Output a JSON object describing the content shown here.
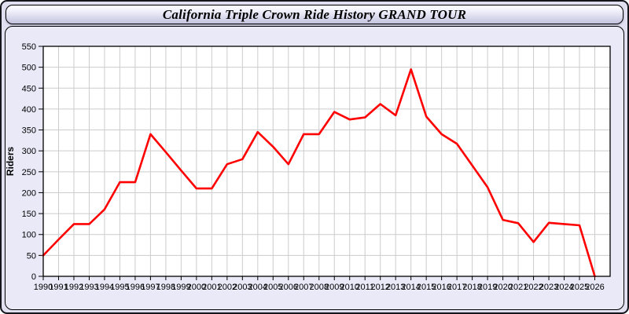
{
  "title": "California Triple Crown Ride History GRAND TOUR",
  "chart_data": {
    "type": "line",
    "title": "California Triple Crown Ride History GRAND TOUR",
    "xlabel": "",
    "ylabel": "Riders",
    "ylim": [
      0,
      550
    ],
    "ytick_step": 50,
    "grid": true,
    "legend": "none",
    "line_color": "#ff0000",
    "grid_color": "#cccccc",
    "plot_bg": "#ffffff",
    "x": [
      1990,
      1991,
      1992,
      1993,
      1994,
      1995,
      1996,
      1997,
      1998,
      1999,
      2000,
      2001,
      2002,
      2003,
      2004,
      2005,
      2006,
      2007,
      2008,
      2009,
      2010,
      2011,
      2012,
      2013,
      2014,
      2015,
      2016,
      2017,
      2018,
      2019,
      2020,
      2021,
      2022,
      2023,
      2024,
      2025,
      2026
    ],
    "series": [
      {
        "name": "Riders",
        "values": [
          50,
          88,
          125,
          125,
          160,
          225,
          225,
          340,
          297,
          253,
          210,
          210,
          268,
          280,
          345,
          310,
          268,
          340,
          340,
          393,
          375,
          380,
          412,
          385,
          495,
          382,
          340,
          317,
          265,
          213,
          135,
          127,
          82,
          128,
          125,
          122,
          0
        ]
      }
    ]
  }
}
